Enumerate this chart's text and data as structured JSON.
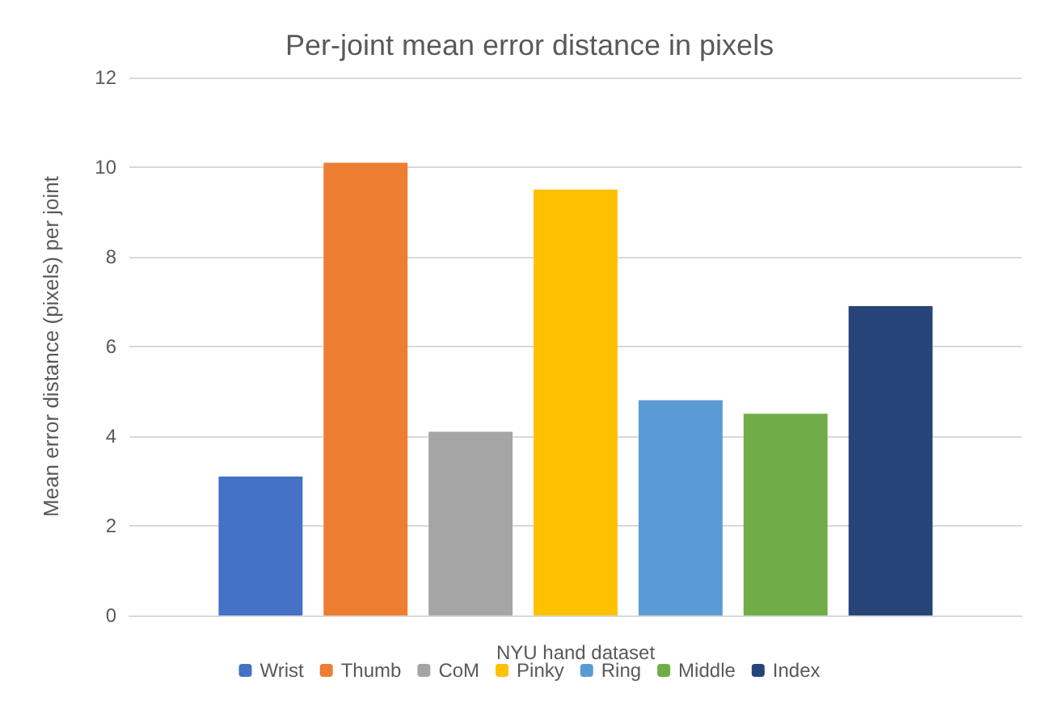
{
  "chart_data": {
    "type": "bar",
    "title": "Per-joint mean error distance in pixels",
    "xlabel": "NYU hand dataset",
    "ylabel": "Mean error distance (pixels) per joint",
    "categories": [
      null
    ],
    "series": [
      {
        "name": "Wrist",
        "color": "#4472c4",
        "values": [
          3.1
        ]
      },
      {
        "name": "Thumb",
        "color": "#ed7d31",
        "values": [
          10.1
        ]
      },
      {
        "name": "CoM",
        "color": "#a5a5a5",
        "values": [
          4.1
        ]
      },
      {
        "name": "Pinky",
        "color": "#ffc000",
        "values": [
          9.5
        ]
      },
      {
        "name": "Ring",
        "color": "#5b9bd5",
        "values": [
          4.8
        ]
      },
      {
        "name": "Middle",
        "color": "#70ad47",
        "values": [
          4.5
        ]
      },
      {
        "name": "Index",
        "color": "#264478",
        "values": [
          6.9
        ]
      }
    ],
    "ylim": [
      0,
      12
    ],
    "yticks": [
      0,
      2,
      4,
      6,
      8,
      10,
      12
    ],
    "grid": "y",
    "legend": "bottom"
  }
}
